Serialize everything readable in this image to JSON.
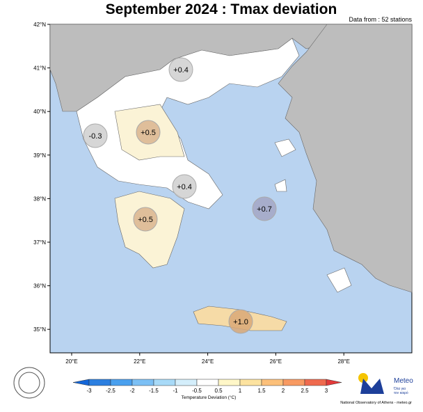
{
  "header": {
    "title": "September 2024 : Tmax deviation",
    "subtitle": "Data from : 52 stations"
  },
  "latitude_labels": [
    "42°N",
    "41°N",
    "40°N",
    "39°N",
    "38°N",
    "37°N",
    "36°N",
    "35°N"
  ],
  "longitude_labels": [
    "20°E",
    "22°E",
    "24°E",
    "26°E",
    "28°E"
  ],
  "regions": [
    {
      "label": "+0.4"
    },
    {
      "label": "-0.3"
    },
    {
      "label": "+0.5"
    },
    {
      "label": "+0.4"
    },
    {
      "label": "+0.7"
    },
    {
      "label": "+0.5"
    },
    {
      "label": "+1.0"
    }
  ],
  "colorbar": {
    "ticks": [
      "-3",
      "-2.5",
      "-2",
      "-1.5",
      "-1",
      "-0.5",
      "0.5",
      "1",
      "1.5",
      "2",
      "2.5",
      "3"
    ],
    "label": "Temperature Deviation (°C)"
  },
  "logo": {
    "name": "Meteo",
    "tagline_1": "Όλα για",
    "tagline_2": "τον καιρό",
    "credit": "National Observatory of Athens - meteo.gr"
  }
}
